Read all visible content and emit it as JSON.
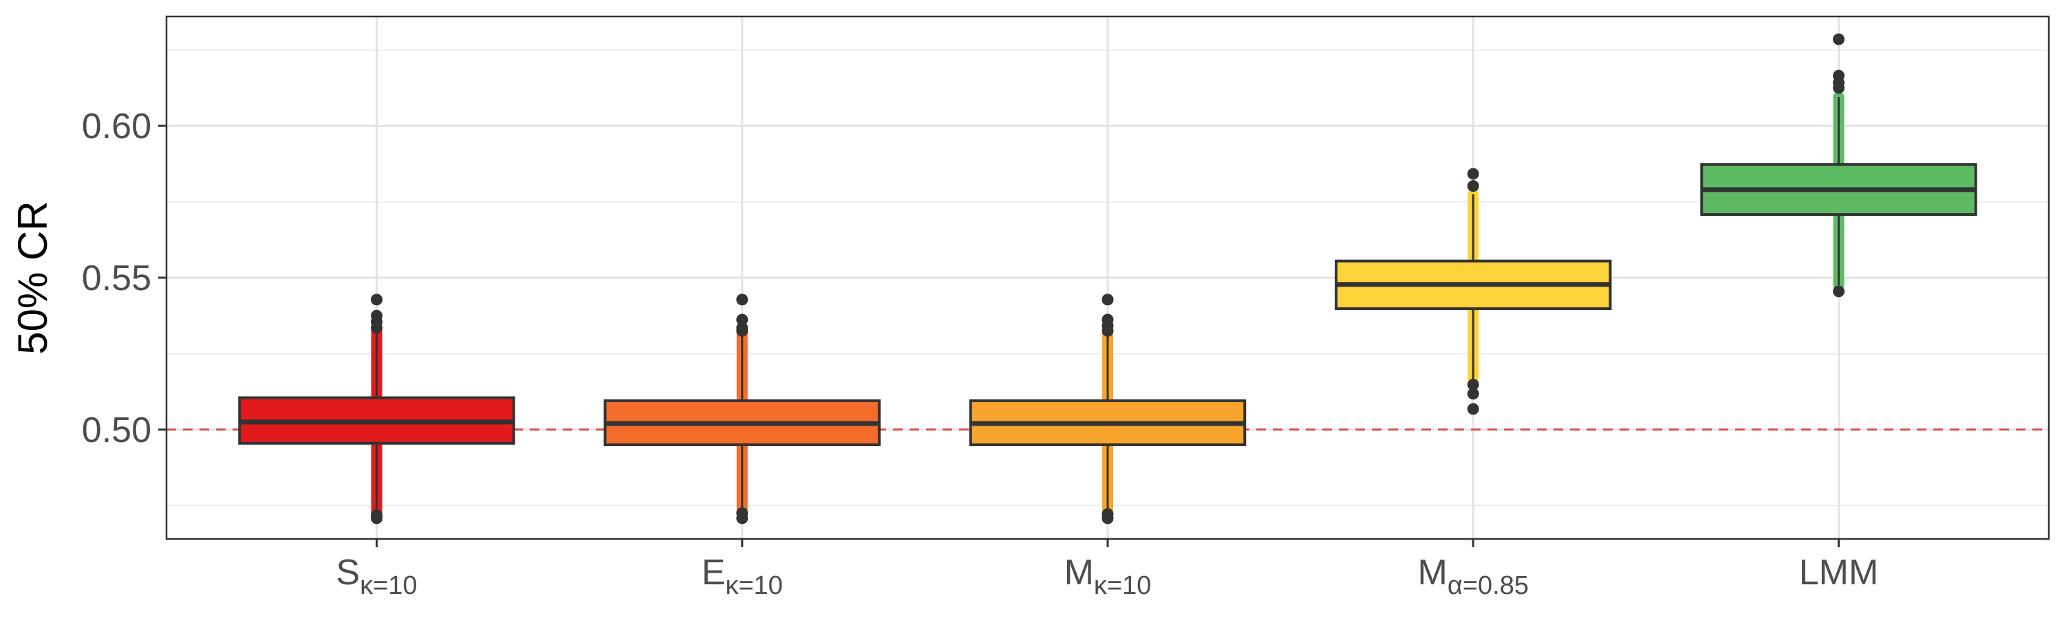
{
  "chart_data": {
    "type": "boxplot",
    "title": "",
    "xlabel": "",
    "ylabel": "50% CR",
    "ylim": [
      0.464,
      0.636
    ],
    "yticks": [
      0.5,
      0.55,
      0.6
    ],
    "ytick_labels": [
      "0.50",
      "0.55",
      "0.60"
    ],
    "grid": true,
    "reference_line": {
      "y": 0.5,
      "style": "dashed",
      "color": "#d9534f"
    },
    "categories": [
      {
        "main": "S",
        "sub": "κ=10"
      },
      {
        "main": "E",
        "sub": "κ=10"
      },
      {
        "main": "M",
        "sub": "κ=10"
      },
      {
        "main": "M",
        "sub": "α=0.85"
      },
      {
        "main": "LMM",
        "sub": ""
      }
    ],
    "series": [
      {
        "color": "#e31a1c",
        "q1": 0.4955,
        "median": 0.5025,
        "q3": 0.5105,
        "whisker_low": 0.473,
        "whisker_high": 0.533,
        "outliers": [
          0.4708,
          0.4718,
          0.5335,
          0.5355,
          0.5375,
          0.5428
        ]
      },
      {
        "color": "#f46d2b",
        "q1": 0.495,
        "median": 0.502,
        "q3": 0.5095,
        "whisker_low": 0.4735,
        "whisker_high": 0.5315,
        "outliers": [
          0.4708,
          0.4725,
          0.5325,
          0.5335,
          0.5362,
          0.5428
        ]
      },
      {
        "color": "#f7a52c",
        "q1": 0.495,
        "median": 0.502,
        "q3": 0.5095,
        "whisker_low": 0.4735,
        "whisker_high": 0.5315,
        "outliers": [
          0.4708,
          0.4722,
          0.5325,
          0.5342,
          0.5362,
          0.5428
        ]
      },
      {
        "color": "#fdd339",
        "q1": 0.5398,
        "median": 0.5478,
        "q3": 0.5555,
        "whisker_low": 0.5165,
        "whisker_high": 0.5775,
        "outliers": [
          0.5068,
          0.5118,
          0.5148,
          0.5802,
          0.5842
        ]
      },
      {
        "color": "#5fba64",
        "q1": 0.5708,
        "median": 0.579,
        "q3": 0.5873,
        "whisker_low": 0.5475,
        "whisker_high": 0.6095,
        "outliers": [
          0.5455,
          0.6125,
          0.6142,
          0.6165,
          0.6285
        ]
      }
    ]
  }
}
